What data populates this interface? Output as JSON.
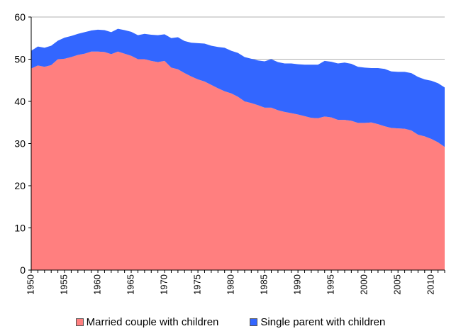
{
  "chart_data": {
    "type": "area",
    "stacked": true,
    "title": "",
    "xlabel": "",
    "ylabel": "",
    "xlim": [
      1950,
      2012
    ],
    "ylim": [
      0,
      60
    ],
    "yticks": [
      0,
      10,
      20,
      30,
      40,
      50,
      60
    ],
    "xticks": [
      1950,
      1955,
      1960,
      1965,
      1970,
      1975,
      1980,
      1985,
      1990,
      1995,
      2000,
      2005,
      2010
    ],
    "grid": "horizontal",
    "legend": "bottom",
    "x": [
      1950,
      1951,
      1952,
      1953,
      1954,
      1955,
      1956,
      1957,
      1958,
      1959,
      1960,
      1961,
      1962,
      1963,
      1964,
      1965,
      1966,
      1967,
      1968,
      1969,
      1970,
      1971,
      1972,
      1973,
      1974,
      1975,
      1976,
      1977,
      1978,
      1979,
      1980,
      1981,
      1982,
      1983,
      1984,
      1985,
      1986,
      1987,
      1988,
      1989,
      1990,
      1991,
      1992,
      1993,
      1994,
      1995,
      1996,
      1997,
      1998,
      1999,
      2000,
      2001,
      2002,
      2003,
      2004,
      2005,
      2006,
      2007,
      2008,
      2009,
      2010,
      2011,
      2012
    ],
    "series": [
      {
        "name": "Married couple with children",
        "color": "#ff7f7f",
        "values": [
          47.8,
          48.5,
          48.2,
          48.6,
          50.0,
          50.1,
          50.5,
          51.0,
          51.3,
          51.8,
          51.8,
          51.7,
          51.2,
          51.8,
          51.3,
          50.8,
          50.0,
          50.0,
          49.6,
          49.3,
          49.6,
          48.0,
          47.6,
          46.7,
          45.9,
          45.2,
          44.7,
          43.9,
          43.1,
          42.4,
          41.9,
          41.1,
          40.0,
          39.6,
          39.1,
          38.5,
          38.5,
          37.9,
          37.5,
          37.2,
          36.9,
          36.5,
          36.1,
          36.0,
          36.4,
          36.2,
          35.6,
          35.6,
          35.4,
          34.9,
          34.9,
          35.0,
          34.6,
          34.1,
          33.7,
          33.6,
          33.5,
          33.1,
          32.1,
          31.7,
          31.1,
          30.3,
          29.2
        ]
      },
      {
        "name": "Single parent with children",
        "color": "#3366ff",
        "values": [
          4.2,
          4.5,
          4.5,
          4.6,
          4.4,
          5.0,
          5.0,
          5.0,
          5.1,
          5.0,
          5.2,
          5.2,
          5.2,
          5.4,
          5.6,
          5.7,
          5.7,
          6.0,
          6.2,
          6.4,
          6.3,
          7.0,
          7.6,
          7.6,
          8.0,
          8.6,
          9.0,
          9.3,
          9.8,
          10.3,
          10.1,
          10.4,
          10.5,
          10.5,
          10.6,
          11.0,
          11.5,
          11.4,
          11.5,
          11.8,
          11.9,
          12.2,
          12.6,
          12.7,
          13.2,
          13.2,
          13.4,
          13.6,
          13.5,
          13.3,
          13.1,
          12.9,
          13.3,
          13.6,
          13.4,
          13.4,
          13.5,
          13.6,
          13.7,
          13.5,
          13.8,
          14.0,
          14.1
        ]
      }
    ]
  }
}
